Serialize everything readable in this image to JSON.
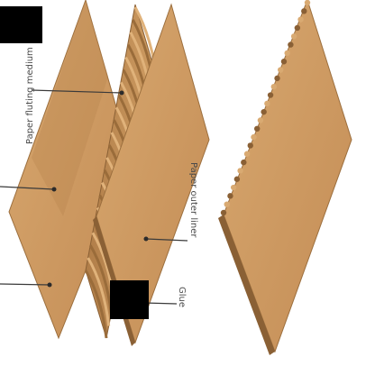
{
  "labels": {
    "paper_fluting_medium": "Paper fluting medium",
    "paper_outer_liner": "Paper outer liner",
    "glue": "Glue"
  },
  "colors": {
    "board": "#c9955e",
    "board_light": "#d6a66f",
    "board_dark": "#a97a45",
    "edge": "#8a6035",
    "background": "#ffffff",
    "redaction": "#000000"
  }
}
